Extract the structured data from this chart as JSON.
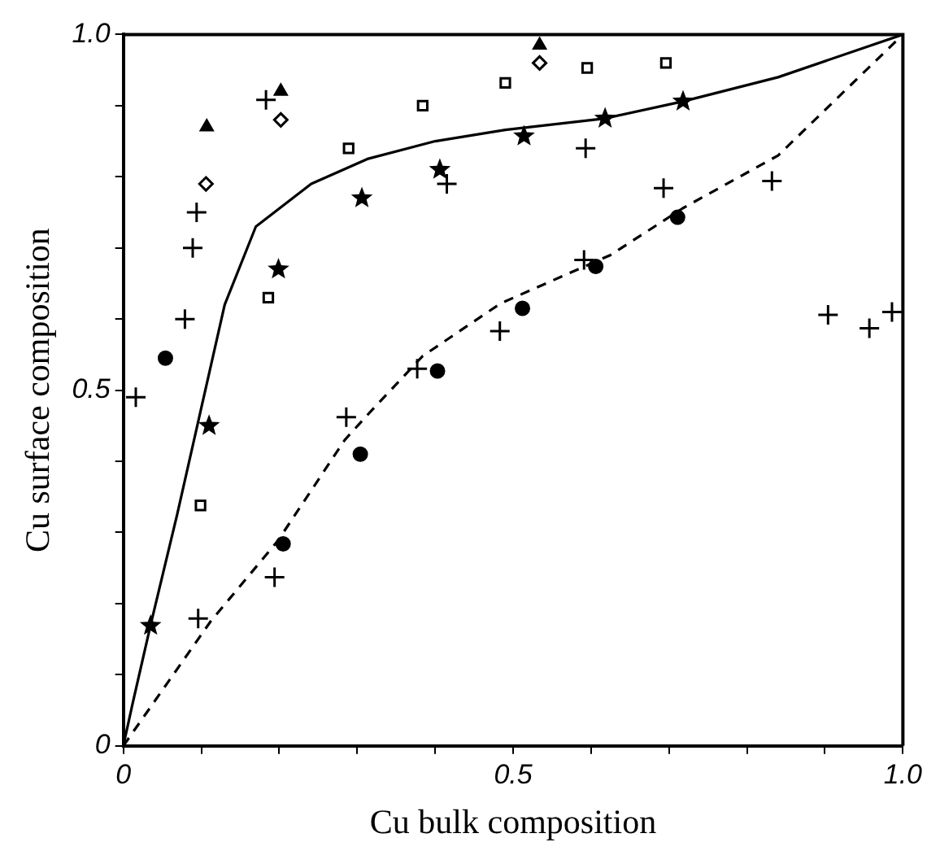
{
  "chart_data": {
    "type": "scatter",
    "xlabel": "Cu bulk composition",
    "ylabel": "Cu surface composition",
    "xlim": [
      0,
      1
    ],
    "ylim": [
      0,
      1
    ],
    "xticks": [
      0,
      {
        "value": 0.1,
        "label": null
      },
      {
        "value": 0.2,
        "label": null
      },
      {
        "value": 0.3,
        "label": null
      },
      {
        "value": 0.4,
        "label": null
      },
      0.5,
      {
        "value": 0.6,
        "label": null
      },
      {
        "value": 0.7,
        "label": null
      },
      {
        "value": 0.8,
        "label": null
      },
      {
        "value": 0.9,
        "label": null
      },
      {
        "value": 1,
        "label": "1.0"
      }
    ],
    "yticks": [
      0,
      {
        "value": 0.1,
        "label": null
      },
      {
        "value": 0.2,
        "label": null
      },
      {
        "value": 0.3,
        "label": null
      },
      {
        "value": 0.4,
        "label": null
      },
      0.5,
      {
        "value": 0.6,
        "label": null
      },
      {
        "value": 0.7,
        "label": null
      },
      {
        "value": 0.8,
        "label": null
      },
      {
        "value": 0.9,
        "label": null
      },
      {
        "value": 1,
        "label": "1.0"
      }
    ],
    "grid": false,
    "legend": false,
    "series": [
      {
        "type": "line",
        "color": "#000000",
        "marker": "none",
        "line_style": "solid",
        "x": [
          0,
          0.012,
          0.035,
          0.069,
          0.1,
          0.13,
          0.17,
          0.241,
          0.313,
          0.4,
          0.49,
          0.618,
          0.718,
          0.84,
          1
        ],
        "values": [
          0,
          0.06,
          0.17,
          0.325,
          0.475,
          0.62,
          0.73,
          0.79,
          0.825,
          0.85,
          0.866,
          0.882,
          0.906,
          0.94,
          1
        ]
      },
      {
        "type": "line",
        "color": "#000000",
        "marker": "none",
        "line_style": "dashed",
        "x": [
          0,
          0.112,
          0.198,
          0.284,
          0.313,
          0.384,
          0.484,
          0.625,
          0.718,
          0.84,
          1
        ],
        "values": [
          0,
          0.175,
          0.288,
          0.43,
          0.465,
          0.548,
          0.622,
          0.69,
          0.756,
          0.83,
          1
        ]
      },
      {
        "color": "#000000",
        "marker": "triangle",
        "x": [
          0.107,
          0.202,
          0.534
        ],
        "values": [
          0.87,
          0.92,
          0.985
        ]
      },
      {
        "color": "#000000",
        "marker": "diamond",
        "x": [
          0.106,
          0.202,
          0.534
        ],
        "values": [
          0.79,
          0.88,
          0.96
        ]
      },
      {
        "color": "#000000",
        "marker": "square",
        "x": [
          0.099,
          0.186,
          0.289,
          0.384,
          0.49,
          0.595,
          0.696
        ],
        "values": [
          0.338,
          0.63,
          0.84,
          0.9,
          0.932,
          0.953,
          0.96
        ]
      },
      {
        "color": "#000000",
        "marker": "star",
        "x": [
          0.035,
          0.11,
          0.199,
          0.306,
          0.406,
          0.514,
          0.618,
          0.718
        ],
        "values": [
          0.169,
          0.45,
          0.67,
          0.77,
          0.81,
          0.857,
          0.882,
          0.906
        ]
      },
      {
        "color": "#000000",
        "marker": "cross",
        "x": [
          0.016,
          0.079,
          0.089,
          0.094,
          0.183,
          0.415,
          0.593,
          0.832,
          0.904,
          0.957,
          0.986
        ],
        "values": [
          0.49,
          0.6,
          0.7,
          0.75,
          0.908,
          0.79,
          0.84,
          0.794,
          0.606,
          0.587,
          0.61
        ]
      },
      {
        "color": "#000000",
        "marker": "circle",
        "x": [
          0.054,
          0.205,
          0.304,
          0.403,
          0.512,
          0.606,
          0.711
        ],
        "values": [
          0.545,
          0.284,
          0.41,
          0.527,
          0.615,
          0.674,
          0.743
        ]
      },
      {
        "color": "#000000",
        "marker": "cross",
        "x": [
          0.096,
          0.194,
          0.286,
          0.377,
          0.483,
          0.591,
          0.693
        ],
        "values": [
          0.179,
          0.237,
          0.462,
          0.53,
          0.583,
          0.683,
          0.784
        ]
      }
    ]
  }
}
